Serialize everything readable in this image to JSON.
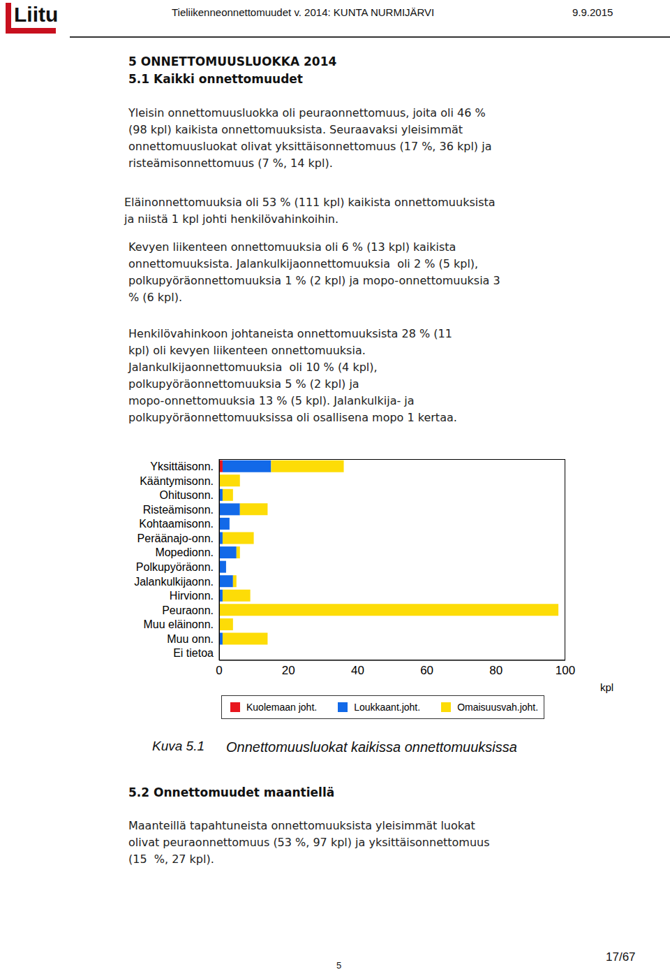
{
  "page": {
    "header": {
      "logo": "Liitu",
      "title": "Tieliikenneonnettomuudet v. 2014: KUNTA NURMIJÄRVI",
      "date": "9.9.2015"
    },
    "heading": "5 ONNETTOMUUSLUOKKA 2014",
    "section1": {
      "heading": "5.1 Kaikki onnettomuudet",
      "paragraphs": [
        [
          "Yleisin onnettomuusluokka oli peuraonnettomuus, joita oli 46 %",
          "(98 kpl) kaikista onnettomuuksista. Seuraavaksi yleisimmät",
          "onnettomuusluokat olivat yksittäisonnettomuus (17 %, 36 kpl) ja",
          "risteämisonnettomuus (7 %, 14 kpl)."
        ],
        [
          "Eläinonnettomuuksia oli 53 % (111 kpl) kaikista onnettomuuksista",
          "ja niistä 1 kpl johti henkilövahinkoihin."
        ],
        [
          "Kevyen liikenteen onnettomuuksia oli 6 % (13 kpl) kaikista",
          "onnettomuuksista. Jalankulkijaonnettomuuksia  oli 2 % (5 kpl),",
          "polkupyöräonnettomuuksia 1 % (2 kpl) ja mopo-onnettomuuksia 3",
          "% (6 kpl)."
        ],
        [
          "Henkilövahinkoon johtaneista onnettomuuksista 28 % (11",
          "kpl) oli kevyen liikenteen onnettomuuksia.",
          "Jalankulkijaonnettomuuksia  oli 10 % (4 kpl),",
          "polkupyöräonnettomuuksia 5 % (2 kpl) ja",
          "mopo-onnettomuuksia 13 % (5 kpl). Jalankulkija- ja",
          "polkupyöräonnettomuuksissa oli osallisena mopo 1 kertaa."
        ]
      ]
    },
    "caption": {
      "label": "Kuva 5.1",
      "text": "Onnettomuusluokat kaikissa onnettomuuksissa"
    },
    "section2": {
      "heading": "5.2 Onnettomuudet maantiellä",
      "paragraphs": [
        [
          "Maanteillä tapahtuneista onnettomuuksista yleisimmät luokat",
          "olivat peuraonnettomuus (53 %, 97 kpl) ja yksittäisonnettomuus",
          "(15  %, 27 kpl)."
        ]
      ]
    },
    "footer": {
      "chapter": "5",
      "page": "17/67"
    }
  },
  "chart_data": {
    "type": "bar",
    "orientation": "horizontal",
    "stacked": true,
    "grid": false,
    "legend": "bottom",
    "x_label": "kpl",
    "categories": [
      "Yksittäisonn.",
      "Kääntymisonn.",
      "Ohitusonn.",
      "Risteämisonn.",
      "Kohtaamisonn.",
      "Peräänajo-onn.",
      "Mopedionn.",
      "Polkupyöräonn.",
      "Jalankulkijaonn.",
      "Hirvionn.",
      "Peuraonn.",
      "Muu eläinonn.",
      "Muu onn.",
      "Ei tietoa"
    ],
    "series": [
      {
        "name": "Kuolemaan joht.",
        "color": "#e8161e",
        "values": [
          1,
          0,
          0,
          0,
          0,
          0,
          0,
          0,
          0,
          0,
          0,
          0,
          0,
          0
        ]
      },
      {
        "name": "Loukkaant.joht.",
        "color": "#1269e8",
        "values": [
          14,
          0,
          1,
          6,
          3,
          1,
          5,
          2,
          4,
          1,
          0,
          0,
          1,
          0
        ]
      },
      {
        "name": "Omaisuusvah.joht.",
        "color": "#fddc07",
        "values": [
          21,
          6,
          3,
          8,
          0,
          9,
          1,
          0,
          1,
          8,
          98,
          4,
          13,
          0
        ]
      }
    ],
    "xlim": [
      0,
      100
    ],
    "xticks": [
      0,
      20,
      40,
      60,
      80,
      100
    ]
  }
}
